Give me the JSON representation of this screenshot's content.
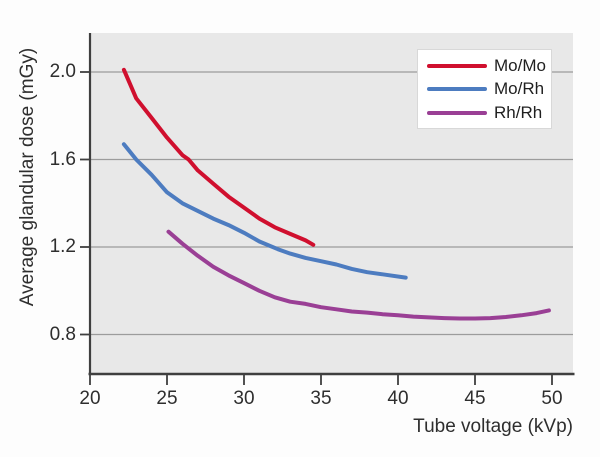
{
  "chart_data": {
    "type": "line",
    "title": "",
    "xlabel": "Tube voltage (kVp)",
    "ylabel": "Average glandular dose (mGy)",
    "x_ticks": [
      20,
      25,
      30,
      35,
      40,
      45,
      50
    ],
    "y_ticks": [
      0.8,
      1.2,
      1.6,
      2.0
    ],
    "xlim": [
      20,
      51.3
    ],
    "ylim": [
      0.62,
      2.18
    ],
    "grid": "horizontal-only",
    "legend_position": "top-right",
    "plot_background": "#e8e8e8",
    "gridline_color": "#9c9c9c",
    "axis_color": "#3f3f3f",
    "series": [
      {
        "name": "Mo/Mo",
        "color": "#d00f2e",
        "points": [
          [
            22.2,
            2.01
          ],
          [
            23,
            1.88
          ],
          [
            24,
            1.79
          ],
          [
            25,
            1.7
          ],
          [
            26,
            1.62
          ],
          [
            26.4,
            1.6
          ],
          [
            27,
            1.55
          ],
          [
            28,
            1.49
          ],
          [
            29,
            1.43
          ],
          [
            30,
            1.38
          ],
          [
            31,
            1.33
          ],
          [
            32,
            1.29
          ],
          [
            33,
            1.26
          ],
          [
            34,
            1.23
          ],
          [
            34.5,
            1.21
          ]
        ]
      },
      {
        "name": "Mo/Rh",
        "color": "#4d7cc0",
        "points": [
          [
            22.2,
            1.67
          ],
          [
            23,
            1.6
          ],
          [
            24,
            1.53
          ],
          [
            25,
            1.45
          ],
          [
            26,
            1.4
          ],
          [
            27,
            1.365
          ],
          [
            28,
            1.33
          ],
          [
            29,
            1.3
          ],
          [
            30,
            1.265
          ],
          [
            31,
            1.225
          ],
          [
            32.2,
            1.19
          ],
          [
            33,
            1.17
          ],
          [
            34,
            1.15
          ],
          [
            35,
            1.135
          ],
          [
            36,
            1.12
          ],
          [
            37,
            1.1
          ],
          [
            38,
            1.085
          ],
          [
            39,
            1.075
          ],
          [
            40.5,
            1.06
          ]
        ]
      },
      {
        "name": "Rh/Rh",
        "color": "#9a3f95",
        "points": [
          [
            25.1,
            1.27
          ],
          [
            26,
            1.215
          ],
          [
            27,
            1.16
          ],
          [
            28,
            1.11
          ],
          [
            29,
            1.07
          ],
          [
            30,
            1.035
          ],
          [
            31,
            1.0
          ],
          [
            32,
            0.97
          ],
          [
            33,
            0.95
          ],
          [
            34,
            0.94
          ],
          [
            35,
            0.925
          ],
          [
            36,
            0.915
          ],
          [
            37,
            0.905
          ],
          [
            38,
            0.9
          ],
          [
            39,
            0.893
          ],
          [
            40,
            0.888
          ],
          [
            41,
            0.882
          ],
          [
            42,
            0.878
          ],
          [
            43,
            0.875
          ],
          [
            44,
            0.873
          ],
          [
            45,
            0.873
          ],
          [
            46,
            0.875
          ],
          [
            47,
            0.88
          ],
          [
            48,
            0.888
          ],
          [
            49,
            0.898
          ],
          [
            49.8,
            0.91
          ]
        ]
      }
    ]
  }
}
